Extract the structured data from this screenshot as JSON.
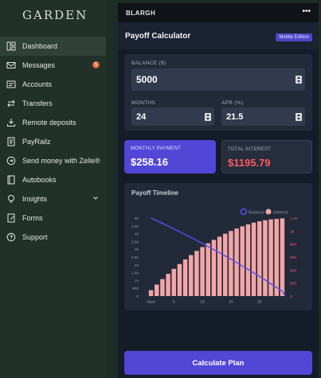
{
  "brand": "GARDEN",
  "sidebar": {
    "items": [
      {
        "label": "Dashboard",
        "icon": "dashboard-icon"
      },
      {
        "label": "Messages",
        "icon": "mail-icon",
        "badge": "5"
      },
      {
        "label": "Accounts",
        "icon": "accounts-icon"
      },
      {
        "label": "Transfers",
        "icon": "transfer-icon"
      },
      {
        "label": "Remote deposits",
        "icon": "download-icon"
      },
      {
        "label": "PayRailz",
        "icon": "document-icon"
      },
      {
        "label": "Send money with Zelle®",
        "icon": "send-icon"
      },
      {
        "label": "Autobooks",
        "icon": "book-icon"
      },
      {
        "label": "Insights",
        "icon": "lightbulb-icon"
      },
      {
        "label": "Forms",
        "icon": "form-icon"
      },
      {
        "label": "Support",
        "icon": "help-icon"
      }
    ]
  },
  "panel": {
    "header": "BLARGH",
    "menu_glyph": "•••",
    "title": "Payoff Calculator",
    "edition": "Mobile Edition",
    "balance": {
      "label": "BALANCE ($)",
      "value": "5000"
    },
    "months": {
      "label": "MONTHS",
      "value": "24"
    },
    "apr": {
      "label": "APR (%)",
      "value": "21.5"
    },
    "monthly_payment": {
      "label": "MONTHLY PAYMENT",
      "value": "$258.16"
    },
    "total_interest": {
      "label": "TOTAL INTEREST",
      "value": "$1195.79"
    },
    "timeline_title": "Payoff Timeline",
    "calculate_label": "Calculate Plan"
  },
  "colors": {
    "accent": "#5246d6",
    "interest": "#f4a6a6",
    "interest_text": "#ff5a5f",
    "balance_line": "#5b4dee",
    "axis_right": "#ff5a5f"
  },
  "chart_data": {
    "type": "bar",
    "legend": [
      "Balance",
      "Interest"
    ],
    "x": [
      1,
      2,
      3,
      4,
      5,
      6,
      7,
      8,
      9,
      10,
      11,
      12,
      13,
      14,
      15,
      16,
      17,
      18,
      19,
      20,
      21,
      22,
      23,
      24
    ],
    "x_ticks": [
      "Start",
      "5",
      "10",
      "15",
      "20"
    ],
    "y_left_ticks": [
      "0",
      "500",
      "1k",
      "1.5k",
      "2k",
      "2.5k",
      "3k",
      "3.5k",
      "4k",
      "4.5k",
      "5k"
    ],
    "y_right_ticks": [
      "0",
      "200",
      "400",
      "600",
      "800",
      "1k",
      "1.2k"
    ],
    "ylim_left": [
      0,
      5000
    ],
    "ylim_right": [
      0,
      1200
    ],
    "series": [
      {
        "name": "Balance",
        "type": "line",
        "values": [
          5000,
          4831,
          4659,
          4484,
          4307,
          4126,
          3942,
          3756,
          3566,
          3373,
          3177,
          2978,
          2775,
          2569,
          2359,
          2146,
          1930,
          1710,
          1486,
          1259,
          1027,
          792,
          553,
          310
        ]
      },
      {
        "name": "Interest",
        "type": "bar",
        "values": [
          90,
          176,
          260,
          341,
          418,
          492,
          563,
          630,
          694,
          754,
          811,
          864,
          913,
          959,
          1001,
          1039,
          1073,
          1103,
          1129,
          1150,
          1167,
          1179,
          1187,
          1195
        ]
      }
    ]
  }
}
